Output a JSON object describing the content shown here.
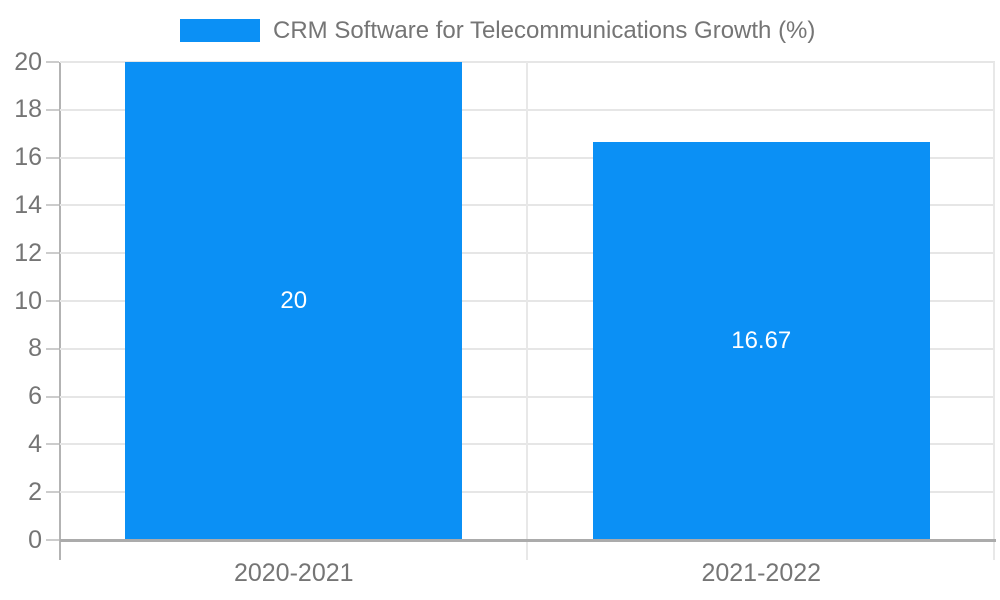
{
  "chart_data": {
    "type": "bar",
    "title": "",
    "legend": "CRM Software for Telecommunications Growth (%)",
    "legend_position": "top-center",
    "categories": [
      "2020-2021",
      "2021-2022"
    ],
    "values": [
      20,
      16.67
    ],
    "bar_labels": [
      "20",
      "16.67"
    ],
    "xlabel": "",
    "ylabel": "",
    "ylim": [
      0,
      20
    ],
    "y_ticks": [
      0,
      2,
      4,
      6,
      8,
      10,
      12,
      14,
      16,
      18,
      20
    ],
    "grid": true,
    "colors": {
      "bar": "#0b90f5",
      "bar_value_text": "#ffffff",
      "axis_text": "#757575",
      "gridline": "#e6e6e6",
      "separator": "#e8e8e8",
      "y_axis_line": "#b3b3b3",
      "x_axis_line": "#ababab",
      "tick": "#cccccc",
      "background": "#ffffff"
    }
  }
}
